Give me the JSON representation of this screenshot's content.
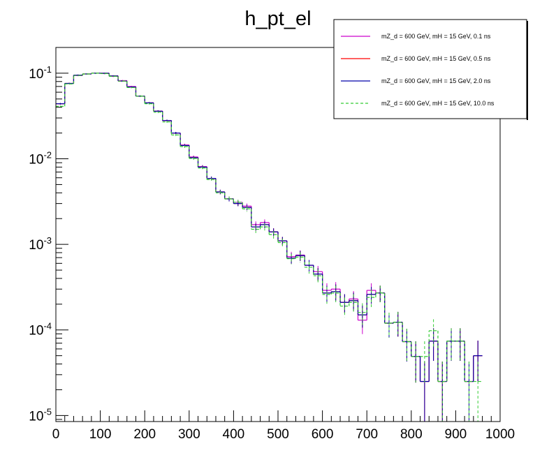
{
  "chart_data": {
    "type": "line",
    "title": "h_pt_el",
    "xlabel": "",
    "ylabel": "",
    "xlim": [
      0,
      1000
    ],
    "ylim": [
      8.5e-06,
      0.2
    ],
    "yscale": "log",
    "grid": false,
    "legend_position": "top-right",
    "x_ticks": [
      "0",
      "100",
      "200",
      "300",
      "400",
      "500",
      "600",
      "700",
      "800",
      "900",
      "1000"
    ],
    "y_ticks": [
      {
        "base": "10",
        "exp": "-5",
        "value": 1e-05
      },
      {
        "base": "10",
        "exp": "-4",
        "value": 0.0001
      },
      {
        "base": "10",
        "exp": "-3",
        "value": 0.001
      },
      {
        "base": "10",
        "exp": "-2",
        "value": 0.01
      },
      {
        "base": "10",
        "exp": "-1",
        "value": 0.1
      }
    ],
    "bin_width": 20,
    "x": [
      0,
      20,
      40,
      60,
      80,
      100,
      120,
      140,
      160,
      180,
      200,
      220,
      240,
      260,
      280,
      300,
      320,
      340,
      360,
      380,
      400,
      420,
      440,
      460,
      480,
      500,
      520,
      540,
      560,
      580,
      600,
      620,
      640,
      660,
      680,
      700,
      720,
      740,
      760,
      780,
      800,
      820,
      840,
      860,
      880,
      900,
      920,
      940
    ],
    "series": [
      {
        "name": "mZ_d = 600 GeV, mH = 15 GeV, 0.1 ns",
        "color": "#cc00cc",
        "dash": false,
        "values": [
          0.044,
          0.076,
          0.094,
          0.098,
          0.1,
          0.099,
          0.092,
          0.082,
          0.07,
          0.054,
          0.045,
          0.036,
          0.028,
          0.02,
          0.0145,
          0.0105,
          0.0081,
          0.0059,
          0.0041,
          0.0034,
          0.0031,
          0.0028,
          0.0017,
          0.0018,
          0.0014,
          0.0011,
          0.00072,
          0.00075,
          0.00057,
          0.00048,
          0.00029,
          0.0003,
          0.00021,
          0.00023,
          0.00013,
          0.00029,
          0.00027,
          0.00012,
          0.000123,
          7.3e-05,
          4.9e-05,
          2.5e-05,
          7.4e-05,
          2.5e-05,
          7.4e-05,
          7.4e-05,
          2.5e-05,
          5e-05
        ]
      },
      {
        "name": "mZ_d = 600 GeV, mH = 15 GeV, 0.5 ns",
        "color": "#ff0000",
        "dash": false,
        "values": [
          0.044,
          0.076,
          0.095,
          0.098,
          0.1,
          0.1,
          0.093,
          0.081,
          0.069,
          0.054,
          0.045,
          0.036,
          0.028,
          0.02,
          0.0143,
          0.0103,
          0.008,
          0.0059,
          0.0041,
          0.0034,
          0.003,
          0.0027,
          0.0016,
          0.0017,
          0.0014,
          0.0011,
          0.00069,
          0.00074,
          0.00057,
          0.00045,
          0.00027,
          0.00028,
          0.00021,
          0.00022,
          0.00015,
          0.00026,
          0.00027,
          0.00012,
          0.000123,
          7.3e-05,
          4.9e-05,
          2.5e-05,
          7.4e-05,
          2.5e-05,
          7.4e-05,
          7.4e-05,
          2.5e-05,
          5e-05
        ]
      },
      {
        "name": "mZ_d = 600 GeV, mH = 15 GeV, 2.0 ns",
        "color": "#0000aa",
        "dash": false,
        "values": [
          0.044,
          0.076,
          0.095,
          0.098,
          0.1,
          0.1,
          0.093,
          0.081,
          0.069,
          0.054,
          0.045,
          0.036,
          0.028,
          0.02,
          0.0143,
          0.0103,
          0.008,
          0.0059,
          0.0041,
          0.0034,
          0.003,
          0.0027,
          0.0016,
          0.0017,
          0.0014,
          0.0011,
          0.00069,
          0.00074,
          0.00057,
          0.00045,
          0.00027,
          0.00028,
          0.00021,
          0.00022,
          0.00015,
          0.00026,
          0.00027,
          0.00012,
          0.000123,
          7.3e-05,
          4.9e-05,
          2.5e-05,
          7.4e-05,
          2.5e-05,
          7.4e-05,
          7.4e-05,
          2.5e-05,
          5e-05
        ]
      },
      {
        "name": "mZ_d = 600 GeV, mH = 15 GeV, 10.0 ns",
        "color": "#33cc33",
        "dash": true,
        "values": [
          0.041,
          0.075,
          0.094,
          0.098,
          0.1,
          0.099,
          0.092,
          0.081,
          0.068,
          0.054,
          0.044,
          0.035,
          0.027,
          0.019,
          0.0139,
          0.0101,
          0.0078,
          0.0057,
          0.004,
          0.0034,
          0.0031,
          0.0026,
          0.0015,
          0.0016,
          0.0013,
          0.00105,
          0.00068,
          0.00071,
          0.00054,
          0.00043,
          0.00026,
          0.00027,
          0.00019,
          0.00021,
          0.00016,
          0.00024,
          0.00027,
          0.00012,
          0.000123,
          7.3e-05,
          4.9e-05,
          4.9e-05,
          9.8e-05,
          2.5e-05,
          7.4e-05,
          7.4e-05,
          2.5e-05,
          2.5e-05
        ]
      }
    ]
  }
}
